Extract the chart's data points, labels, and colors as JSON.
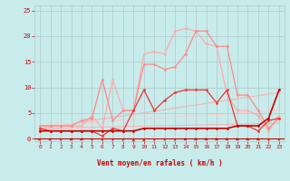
{
  "background_color": "#c8ecec",
  "grid_color": "#b0c8c8",
  "xlabel": "Vent moyen/en rafales ( km/h )",
  "xlabel_color": "#cc0000",
  "tick_color": "#cc0000",
  "xlim": [
    -0.5,
    23.5
  ],
  "ylim": [
    -0.5,
    26
  ],
  "yticks": [
    0,
    5,
    10,
    15,
    20,
    25
  ],
  "xticks": [
    0,
    1,
    2,
    3,
    4,
    5,
    6,
    7,
    8,
    9,
    10,
    11,
    12,
    13,
    14,
    15,
    16,
    17,
    18,
    19,
    20,
    21,
    22,
    23
  ],
  "lines": [
    {
      "x": [
        0,
        23
      ],
      "y": [
        2.0,
        3.0
      ],
      "color": "#ffb0b0",
      "lw": 0.8,
      "marker": null,
      "ms": 0,
      "zorder": 1
    },
    {
      "x": [
        0,
        23
      ],
      "y": [
        2.0,
        9.0
      ],
      "color": "#ffb0b0",
      "lw": 0.8,
      "marker": null,
      "ms": 0,
      "zorder": 1
    },
    {
      "x": [
        0,
        23
      ],
      "y": [
        2.5,
        5.5
      ],
      "color": "#ffcccc",
      "lw": 0.8,
      "marker": null,
      "ms": 0,
      "zorder": 1
    },
    {
      "x": [
        0,
        1,
        2,
        3,
        4,
        5,
        6,
        7,
        8,
        9,
        10,
        11,
        12,
        13,
        14,
        15,
        16,
        17,
        18,
        19,
        20,
        21,
        22,
        23
      ],
      "y": [
        2.5,
        2.5,
        2.5,
        2.5,
        2.5,
        4.5,
        2.0,
        11.5,
        5.5,
        5.5,
        16.5,
        17.0,
        16.5,
        21.0,
        21.5,
        21.0,
        18.5,
        18.0,
        8.5,
        5.5,
        5.5,
        4.5,
        1.5,
        4.5
      ],
      "color": "#ffaaaa",
      "lw": 0.9,
      "marker": "o",
      "ms": 2.0,
      "zorder": 2
    },
    {
      "x": [
        0,
        1,
        2,
        3,
        4,
        5,
        6,
        7,
        8,
        9,
        10,
        11,
        12,
        13,
        14,
        15,
        16,
        17,
        18,
        19,
        20,
        21,
        22,
        23
      ],
      "y": [
        2.5,
        2.5,
        2.5,
        2.5,
        3.5,
        4.0,
        11.5,
        3.5,
        5.5,
        5.5,
        14.5,
        14.5,
        13.5,
        14.0,
        16.5,
        21.0,
        21.0,
        18.0,
        18.0,
        8.5,
        8.5,
        5.5,
        2.0,
        4.0
      ],
      "color": "#ff8888",
      "lw": 0.9,
      "marker": "o",
      "ms": 2.0,
      "zorder": 2
    },
    {
      "x": [
        0,
        1,
        2,
        3,
        4,
        5,
        6,
        7,
        8,
        9,
        10,
        11,
        12,
        13,
        14,
        15,
        16,
        17,
        18,
        19,
        20,
        21,
        22,
        23
      ],
      "y": [
        2.0,
        1.5,
        1.5,
        1.5,
        1.5,
        1.5,
        0.5,
        2.0,
        1.5,
        5.5,
        9.5,
        5.5,
        7.5,
        9.0,
        9.5,
        9.5,
        9.5,
        7.0,
        9.5,
        2.5,
        2.5,
        1.5,
        3.5,
        4.0
      ],
      "color": "#ee3333",
      "lw": 0.9,
      "marker": "o",
      "ms": 2.0,
      "zorder": 3
    },
    {
      "x": [
        0,
        1,
        2,
        3,
        4,
        5,
        6,
        7,
        8,
        9,
        10,
        11,
        12,
        13,
        14,
        15,
        16,
        17,
        18,
        19,
        20,
        21,
        22,
        23
      ],
      "y": [
        1.5,
        1.5,
        1.5,
        1.5,
        1.5,
        1.5,
        1.5,
        1.5,
        1.5,
        1.5,
        2.0,
        2.0,
        2.0,
        2.0,
        2.0,
        2.0,
        2.0,
        2.0,
        2.0,
        2.5,
        2.5,
        2.5,
        4.0,
        9.5
      ],
      "color": "#cc0000",
      "lw": 1.2,
      "marker": "o",
      "ms": 2.0,
      "zorder": 5
    }
  ],
  "hline_y": 0.0,
  "hline_color": "#cc0000",
  "arrow_angles_deg": [
    180,
    180,
    135,
    225,
    225,
    135,
    135,
    45,
    45,
    90,
    90,
    45,
    135,
    45,
    315,
    315,
    315,
    315,
    315,
    315,
    315,
    315,
    135,
    135
  ],
  "arrow_color": "#cc0000"
}
